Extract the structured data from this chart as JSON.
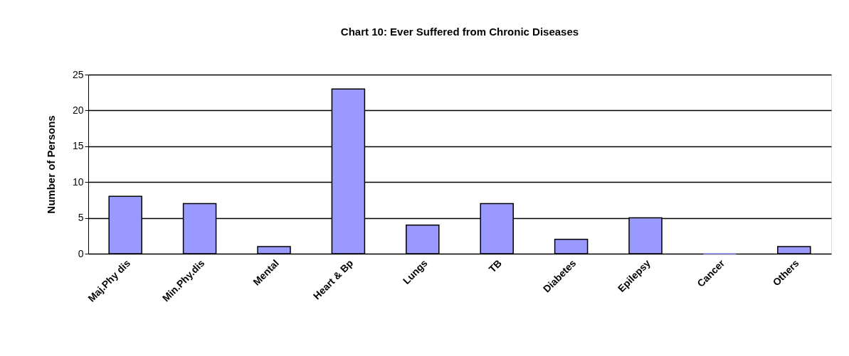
{
  "chart_data": {
    "type": "bar",
    "title": "Chart 10:  Ever Suffered from Chronic Diseases",
    "ylabel": "Number of Persons",
    "categories": [
      "Maj.Phy dis",
      "Min.Phy.dis",
      "Mental",
      "Heart & Bp",
      "Lungs",
      "TB",
      "Diabetes",
      "Epilepsy",
      "Cancer",
      "Others"
    ],
    "values": [
      8,
      7,
      1,
      23,
      4,
      7,
      2,
      5,
      0,
      1
    ],
    "color": "#9999ff",
    "ylim": [
      0,
      25
    ],
    "yticks": [
      0,
      5,
      10,
      15,
      20,
      25
    ],
    "grid": "y"
  }
}
